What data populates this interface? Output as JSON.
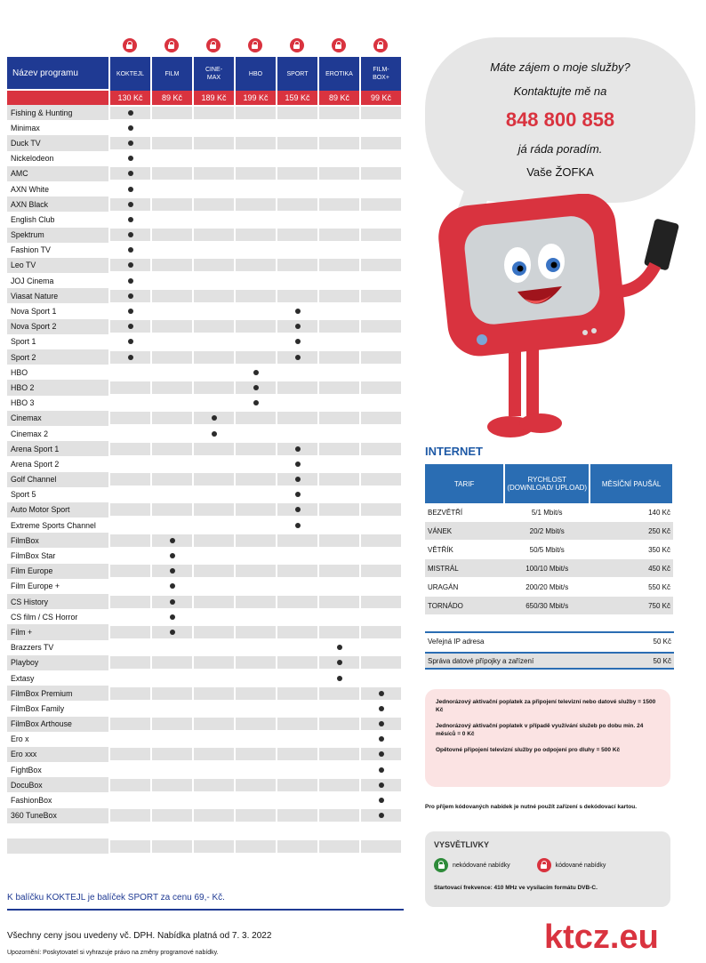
{
  "table": {
    "header_label": "Název programu",
    "packages": [
      {
        "name": "KOKTEJL",
        "price": "130 Kč"
      },
      {
        "name": "FILM",
        "price": "89 Kč"
      },
      {
        "name": "CINE-\nMAX",
        "price": "189 Kč"
      },
      {
        "name": "HBO",
        "price": "199 Kč"
      },
      {
        "name": "SPORT",
        "price": "159 Kč"
      },
      {
        "name": "EROTIKA",
        "price": "89 Kč"
      },
      {
        "name": "FILM-\nBOX+",
        "price": "99 Kč"
      }
    ],
    "channels": [
      {
        "name": "Fishing & Hunting",
        "in": [
          0
        ]
      },
      {
        "name": "Minimax",
        "in": [
          0
        ]
      },
      {
        "name": "Duck TV",
        "in": [
          0
        ]
      },
      {
        "name": "Nickelodeon",
        "in": [
          0
        ]
      },
      {
        "name": "AMC",
        "in": [
          0
        ]
      },
      {
        "name": "AXN White",
        "in": [
          0
        ]
      },
      {
        "name": "AXN Black",
        "in": [
          0
        ]
      },
      {
        "name": "English Club",
        "in": [
          0
        ]
      },
      {
        "name": "Spektrum",
        "in": [
          0
        ]
      },
      {
        "name": "Fashion TV",
        "in": [
          0
        ]
      },
      {
        "name": "Leo TV",
        "in": [
          0
        ]
      },
      {
        "name": "JOJ Cinema",
        "in": [
          0
        ]
      },
      {
        "name": "Viasat Nature",
        "in": [
          0
        ]
      },
      {
        "name": "Nova Sport 1",
        "in": [
          0,
          4
        ]
      },
      {
        "name": "Nova Sport 2",
        "in": [
          0,
          4
        ]
      },
      {
        "name": "Sport 1",
        "in": [
          0,
          4
        ]
      },
      {
        "name": "Sport 2",
        "in": [
          0,
          4
        ]
      },
      {
        "name": "HBO",
        "in": [
          3
        ]
      },
      {
        "name": "HBO 2",
        "in": [
          3
        ]
      },
      {
        "name": "HBO 3",
        "in": [
          3
        ]
      },
      {
        "name": "Cinemax",
        "in": [
          2
        ]
      },
      {
        "name": "Cinemax 2",
        "in": [
          2
        ]
      },
      {
        "name": "Arena Sport 1",
        "in": [
          4
        ]
      },
      {
        "name": "Arena Sport 2",
        "in": [
          4
        ]
      },
      {
        "name": "Golf Channel",
        "in": [
          4
        ]
      },
      {
        "name": "Sport 5",
        "in": [
          4
        ]
      },
      {
        "name": "Auto Motor Sport",
        "in": [
          4
        ]
      },
      {
        "name": "Extreme Sports Channel",
        "in": [
          4
        ]
      },
      {
        "name": "FilmBox",
        "in": [
          1
        ]
      },
      {
        "name": "FilmBox Star",
        "in": [
          1
        ]
      },
      {
        "name": "Film Europe",
        "in": [
          1
        ]
      },
      {
        "name": "Film Europe +",
        "in": [
          1
        ]
      },
      {
        "name": "CS History",
        "in": [
          1
        ]
      },
      {
        "name": "CS film / CS Horror",
        "in": [
          1
        ]
      },
      {
        "name": "Film +",
        "in": [
          1
        ]
      },
      {
        "name": "Brazzers TV",
        "in": [
          5
        ]
      },
      {
        "name": "Playboy",
        "in": [
          5
        ]
      },
      {
        "name": "Extasy",
        "in": [
          5
        ]
      },
      {
        "name": "FilmBox Premium",
        "in": [
          6
        ]
      },
      {
        "name": "FilmBox Family",
        "in": [
          6
        ]
      },
      {
        "name": "FilmBox Arthouse",
        "in": [
          6
        ]
      },
      {
        "name": "Ero x",
        "in": [
          6
        ]
      },
      {
        "name": "Ero xxx",
        "in": [
          6
        ]
      },
      {
        "name": "FightBox",
        "in": [
          6
        ]
      },
      {
        "name": "DocuBox",
        "in": [
          6
        ]
      },
      {
        "name": "FashionBox",
        "in": [
          6
        ]
      },
      {
        "name": "360 TuneBox",
        "in": [
          6
        ]
      },
      {
        "name": "",
        "in": []
      },
      {
        "name": "",
        "in": []
      }
    ],
    "bundle_note": "K balíčku KOKTEJL je balíček SPORT za cenu 69,- Kč."
  },
  "footer": {
    "vat_note": "Všechny ceny jsou uvedeny vč. DPH. Nabídka platná od 7. 3. 2022",
    "disclaimer": "Upozornění: Poskytovatel si vyhrazuje právo na změny programové nabídky."
  },
  "bubble": {
    "line1": "Máte zájem o moje služby?",
    "line2": "Kontaktujte mě na",
    "phone": "848 800 858",
    "line3": "já ráda poradím.",
    "line4": "Vaše ŽOFKA"
  },
  "internet": {
    "title": "INTERNET",
    "headers": [
      "TARIF",
      "RYCHLOST (DOWNLOAD/ UPLOAD)",
      "MĚSÍČNÍ PAUŠÁL"
    ],
    "rows": [
      [
        "BEZVĚTŘÍ",
        "5/1 Mbit/s",
        "140 Kč"
      ],
      [
        "VÁNEK",
        "20/2 Mbit/s",
        "250 Kč"
      ],
      [
        "VĚTŘÍK",
        "50/5 Mbit/s",
        "350 Kč"
      ],
      [
        "MISTRÁL",
        "100/10 Mbit/s",
        "450 Kč"
      ],
      [
        "URAGÁN",
        "200/20 Mbit/s",
        "550 Kč"
      ],
      [
        "TORNÁDO",
        "650/30 Mbit/s",
        "750 Kč"
      ]
    ],
    "extra": [
      {
        "label": "Veřejná IP adresa",
        "price": "50 Kč"
      },
      {
        "label": "Správa datové přípojky a zařízení",
        "price": "50 Kč"
      }
    ]
  },
  "fees": [
    "Jednorázový aktivační poplatek za připojení televizní nebo datové služby = 1500 Kč",
    "Jednorázový aktivační poplatek v případě využívání služeb po dobu min. 24 měsíců = 0 Kč",
    "Opětovné připojení televizní služby po odpojení pro dluhy = 500 Kč"
  ],
  "requirement": "Pro příjem kódovaných nabídek je nutné použít zařízení s dekódovací kartou.",
  "legend": {
    "title": "VYSVĚTLIVKY",
    "uncoded": "nekódované nabídky",
    "coded": "kódované nabídky",
    "frequency": "Startovací frekvence: 410 MHz ve vysílacím formátu DVB-C."
  },
  "logo": "ktcz.eu",
  "colors": {
    "brand_red": "#d9333f",
    "brand_blue": "#1f3a93",
    "internet_blue": "#2a6db3"
  }
}
